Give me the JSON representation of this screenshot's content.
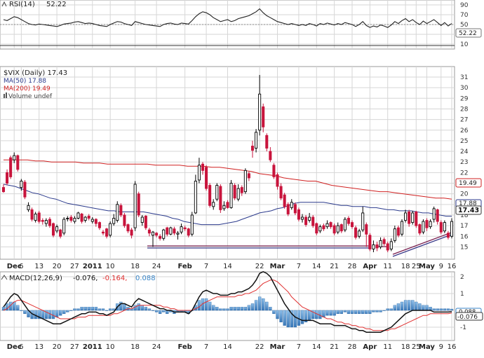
{
  "rsi": {
    "label": "RSI(14)",
    "value_label": "52.22",
    "icon": "rsi-indicator-icon",
    "ticks": [
      "90",
      "70",
      "50",
      "30",
      "10"
    ],
    "ylim": [
      0,
      100
    ],
    "levels": [
      70,
      30
    ],
    "current": 52.22
  },
  "price": {
    "label": "$VIX (Daily) 17.43",
    "ma50_label": "MA(50) 17.88",
    "ma200_label": "MA(200) 19.49",
    "volume_label": "Volume undef",
    "ticks": [
      "31",
      "30",
      "29",
      "28",
      "27",
      "26",
      "25",
      "24",
      "23",
      "22",
      "21",
      "20",
      "19",
      "18",
      "17",
      "16",
      "15"
    ],
    "tag_ma200": "19.49",
    "tag_ma50": "17.88",
    "tag_last": "17.43"
  },
  "macd": {
    "label": "MACD(12,26,9)",
    "v1": "-0.076,",
    "v2": "-0.164,",
    "v3": "0.088",
    "ticks": [
      "2",
      "1",
      "0",
      "-1"
    ],
    "tag_main": "-0.076",
    "tag_hist": "0.088"
  },
  "x_labels": [
    "Dec",
    "6",
    "13",
    "20",
    "27",
    "2011",
    "10",
    "18",
    "24",
    "Feb",
    "7",
    "14",
    "22",
    "Mar",
    "7",
    "14",
    "21",
    "28",
    "Apr",
    "11",
    "18",
    "25",
    "May",
    "9",
    "16"
  ],
  "colors": {
    "up": "#000000",
    "down": "#c8143c",
    "ma50": "#2b3a8c",
    "ma200": "#d02020",
    "macd_signal": "#e03030",
    "histogram": "#4a8cc8",
    "support_line": "#7a2050",
    "grid": "#d6d6d6"
  },
  "chart_data": {
    "type": "candlestick",
    "title": "$VIX (Daily)",
    "ylim": [
      14,
      32
    ],
    "ma50": [
      20.9,
      20.8,
      20.7,
      20.5,
      20.3,
      20.1,
      20.0,
      19.8,
      19.6,
      19.5,
      19.3,
      19.1,
      19.0,
      18.9,
      18.8,
      18.7,
      18.6,
      18.5,
      18.4,
      18.4,
      18.3,
      18.3,
      18.3,
      18.3,
      18.3,
      18.2,
      18.1,
      18.0,
      17.9,
      17.7,
      17.6,
      17.4,
      17.3,
      17.2,
      17.1,
      17.1,
      17.1,
      17.1,
      17.2,
      17.3,
      17.4,
      17.6,
      17.8,
      18.0,
      18.2,
      18.3,
      18.4,
      18.6,
      18.7,
      18.9,
      19.1,
      19.2,
      19.2,
      19.2,
      19.2,
      19.2,
      19.1,
      19.0,
      18.9,
      18.9,
      18.8,
      18.8,
      18.8,
      18.7,
      18.7,
      18.6,
      18.5,
      18.5,
      18.4,
      18.4,
      18.4,
      18.3,
      18.2,
      18.2,
      18.1,
      18.0,
      17.9,
      17.9
    ],
    "ma200": [
      23.2,
      23.2,
      23.2,
      23.2,
      23.1,
      23.1,
      23.0,
      23.0,
      23.0,
      23.0,
      22.9,
      22.9,
      22.9,
      22.8,
      22.8,
      22.8,
      22.8,
      22.8,
      22.8,
      22.7,
      22.7,
      22.7,
      22.7,
      22.6,
      22.6,
      22.6,
      22.5,
      22.5,
      22.4,
      22.3,
      22.2,
      22.1,
      21.9,
      21.8,
      21.7,
      21.5,
      21.4,
      21.3,
      21.2,
      21.2,
      21.0,
      20.8,
      20.7,
      20.6,
      20.5,
      20.4,
      20.3,
      20.2,
      20.2,
      20.1,
      20.0,
      19.9,
      19.8,
      19.7,
      19.6,
      19.6,
      19.5
    ],
    "candles": [
      [
        20.6,
        20.2,
        20.9,
        20.1
      ],
      [
        22.0,
        21.0,
        22.3,
        20.8
      ],
      [
        23.4,
        21.6,
        23.6,
        21.4
      ],
      [
        23.2,
        23.6,
        23.9,
        22.9
      ],
      [
        23.6,
        22.3,
        23.7,
        22.1
      ],
      [
        20.6,
        21.2,
        21.4,
        20.3
      ],
      [
        21.1,
        19.7,
        21.3,
        19.5
      ],
      [
        18.5,
        18.9,
        19.2,
        18.3
      ],
      [
        18.5,
        17.6,
        18.7,
        17.4
      ],
      [
        17.5,
        18.1,
        18.3,
        17.3
      ],
      [
        18.2,
        17.4,
        18.4,
        17.2
      ],
      [
        17.5,
        17.4,
        17.7,
        17.1
      ],
      [
        17.2,
        17.5,
        17.7,
        16.9
      ],
      [
        17.6,
        17.0,
        17.8,
        16.8
      ],
      [
        17.2,
        16.1,
        17.3,
        15.9
      ],
      [
        16.5,
        16.9,
        17.1,
        16.3
      ],
      [
        16.6,
        16.0,
        16.7,
        15.8
      ],
      [
        16.3,
        17.6,
        17.8,
        16.1
      ],
      [
        17.7,
        17.7,
        17.9,
        17.4
      ],
      [
        17.8,
        17.5,
        18.0,
        17.3
      ],
      [
        17.4,
        17.7,
        17.9,
        17.2
      ],
      [
        17.7,
        18.2,
        18.3,
        17.6
      ],
      [
        18.1,
        17.4,
        18.2,
        17.2
      ],
      [
        17.5,
        17.8,
        17.9,
        17.3
      ],
      [
        17.9,
        17.7,
        18.1,
        17.5
      ],
      [
        17.4,
        17.6,
        17.8,
        17.2
      ],
      [
        17.6,
        17.2,
        17.7,
        16.9
      ],
      [
        17.3,
        16.8,
        17.4,
        16.6
      ],
      [
        16.4,
        16.3,
        16.6,
        16.1
      ],
      [
        16.7,
        16.0,
        16.8,
        15.8
      ],
      [
        16.1,
        17.2,
        17.4,
        15.9
      ],
      [
        17.2,
        17.7,
        18.1,
        17.0
      ],
      [
        17.5,
        19.0,
        19.3,
        17.3
      ],
      [
        18.9,
        18.0,
        19.1,
        17.8
      ],
      [
        18.0,
        17.0,
        18.2,
        16.8
      ],
      [
        17.1,
        16.5,
        17.2,
        16.3
      ],
      [
        16.6,
        16.1,
        16.8,
        15.8
      ],
      [
        16.8,
        20.9,
        21.2,
        16.5
      ],
      [
        20.0,
        18.0,
        20.2,
        17.8
      ],
      [
        17.3,
        17.8,
        18.0,
        17.0
      ],
      [
        17.9,
        16.8,
        18.0,
        16.6
      ],
      [
        16.6,
        16.3,
        16.8,
        16.0
      ],
      [
        16.1,
        16.4,
        16.5,
        15.0
      ],
      [
        16.3,
        16.1,
        16.4,
        15.9
      ],
      [
        16.0,
        15.8,
        16.2,
        15.6
      ],
      [
        15.8,
        16.6,
        16.7,
        15.6
      ],
      [
        16.8,
        16.2,
        16.9,
        16.0
      ],
      [
        16.2,
        16.8,
        16.9,
        16.1
      ],
      [
        16.7,
        16.3,
        16.9,
        16.1
      ],
      [
        16.2,
        16.3,
        16.5,
        15.7
      ],
      [
        16.4,
        16.9,
        17.2,
        16.2
      ],
      [
        16.8,
        16.7,
        17.0,
        16.5
      ],
      [
        16.7,
        16.1,
        16.8,
        15.9
      ],
      [
        16.2,
        18.0,
        18.3,
        16.0
      ],
      [
        18.2,
        21.2,
        21.8,
        18.1
      ],
      [
        21.3,
        22.7,
        23.4,
        21.0
      ],
      [
        22.8,
        22.2,
        23.0,
        21.8
      ],
      [
        22.5,
        20.5,
        22.7,
        20.3
      ],
      [
        20.8,
        18.9,
        21.0,
        18.7
      ],
      [
        18.8,
        19.2,
        19.5,
        18.5
      ],
      [
        19.5,
        20.8,
        21.0,
        19.3
      ],
      [
        20.7,
        18.5,
        20.9,
        18.2
      ],
      [
        18.6,
        18.9,
        19.3,
        18.4
      ],
      [
        19.2,
        18.7,
        19.4,
        18.6
      ],
      [
        18.7,
        21.0,
        21.3,
        18.6
      ],
      [
        20.8,
        19.6,
        21.0,
        19.4
      ],
      [
        19.5,
        20.5,
        20.9,
        19.3
      ],
      [
        20.6,
        20.1,
        20.8,
        19.8
      ],
      [
        20.2,
        22.2,
        22.4,
        20.0
      ],
      [
        21.9,
        21.5,
        22.1,
        21.2
      ],
      [
        24.5,
        24.1,
        25.0,
        23.4
      ],
      [
        24.3,
        25.8,
        26.1,
        23.9
      ],
      [
        26.0,
        29.4,
        31.2,
        25.5
      ],
      [
        28.2,
        26.3,
        28.5,
        25.8
      ],
      [
        25.5,
        24.3,
        25.7,
        24.0
      ],
      [
        24.0,
        23.2,
        24.4,
        23.0
      ],
      [
        22.7,
        21.6,
        22.9,
        21.4
      ],
      [
        21.8,
        20.7,
        22.0,
        20.4
      ],
      [
        20.7,
        19.6,
        21.0,
        19.4
      ],
      [
        19.9,
        18.8,
        20.1,
        18.6
      ],
      [
        19.0,
        18.1,
        19.2,
        17.9
      ],
      [
        18.7,
        19.2,
        19.5,
        18.5
      ],
      [
        19.0,
        18.2,
        19.2,
        18.0
      ],
      [
        18.5,
        17.6,
        18.7,
        17.4
      ],
      [
        17.6,
        17.8,
        18.1,
        17.3
      ],
      [
        17.8,
        17.1,
        18.0,
        16.9
      ],
      [
        17.5,
        17.8,
        18.2,
        17.3
      ],
      [
        17.8,
        17.0,
        18.0,
        16.8
      ],
      [
        17.2,
        16.3,
        17.3,
        16.1
      ],
      [
        16.5,
        16.9,
        17.1,
        16.3
      ],
      [
        17.0,
        16.7,
        17.2,
        16.5
      ],
      [
        16.9,
        17.2,
        17.5,
        16.7
      ],
      [
        17.3,
        16.9,
        17.4,
        16.7
      ],
      [
        17.0,
        16.3,
        17.2,
        16.1
      ],
      [
        16.4,
        17.0,
        17.3,
        16.2
      ],
      [
        17.1,
        16.5,
        17.2,
        16.3
      ],
      [
        16.6,
        17.6,
        17.8,
        16.4
      ],
      [
        17.7,
        17.2,
        17.9,
        17.0
      ],
      [
        17.3,
        16.9,
        17.5,
        16.7
      ],
      [
        16.8,
        15.9,
        17.0,
        15.7
      ],
      [
        16.0,
        16.5,
        16.7,
        15.8
      ],
      [
        16.6,
        18.2,
        18.8,
        16.4
      ],
      [
        17.1,
        16.2,
        17.3,
        15.0
      ],
      [
        16.1,
        14.8,
        16.3,
        14.6
      ],
      [
        14.8,
        15.2,
        15.6,
        14.5
      ],
      [
        15.2,
        14.9,
        15.5,
        14.6
      ],
      [
        15.0,
        15.6,
        15.9,
        14.8
      ],
      [
        15.7,
        15.3,
        15.9,
        15.1
      ],
      [
        15.3,
        14.7,
        15.5,
        14.5
      ],
      [
        14.8,
        15.5,
        15.8,
        14.6
      ],
      [
        15.6,
        16.7,
        17.0,
        15.4
      ],
      [
        16.8,
        16.1,
        17.0,
        15.9
      ],
      [
        16.2,
        17.4,
        17.6,
        16.0
      ],
      [
        17.5,
        18.2,
        18.5,
        17.3
      ],
      [
        18.3,
        17.2,
        18.5,
        16.9
      ],
      [
        17.3,
        18.2,
        18.4,
        17.1
      ],
      [
        18.3,
        17.0,
        18.4,
        16.8
      ],
      [
        17.1,
        16.3,
        17.2,
        16.1
      ],
      [
        16.4,
        17.4,
        17.6,
        16.2
      ],
      [
        17.5,
        16.8,
        17.7,
        16.5
      ],
      [
        16.9,
        17.4,
        17.6,
        16.7
      ],
      [
        17.6,
        18.6,
        18.8,
        17.3
      ],
      [
        18.5,
        17.4,
        18.6,
        17.1
      ],
      [
        17.3,
        16.4,
        17.5,
        16.2
      ],
      [
        16.5,
        17.3,
        17.5,
        16.3
      ],
      [
        16.3,
        15.9,
        16.5,
        15.7
      ],
      [
        16.0,
        17.4,
        17.7,
        15.8
      ]
    ],
    "rsi": [
      60,
      58,
      62,
      66,
      64,
      60,
      56,
      52,
      50,
      49,
      51,
      50,
      49,
      48,
      47,
      46,
      48,
      51,
      52,
      53,
      55,
      56,
      54,
      52,
      53,
      52,
      50,
      48,
      47,
      46,
      50,
      53,
      56,
      55,
      52,
      50,
      48,
      56,
      54,
      52,
      50,
      49,
      48,
      47,
      46,
      50,
      52,
      53,
      51,
      50,
      53,
      52,
      51,
      58,
      66,
      72,
      76,
      74,
      70,
      64,
      60,
      56,
      58,
      60,
      56,
      58,
      62,
      64,
      66,
      68,
      72,
      76,
      82,
      74,
      68,
      64,
      60,
      56,
      54,
      52,
      50,
      52,
      50,
      48,
      50,
      48,
      52,
      50,
      47,
      52,
      50,
      53,
      51,
      49,
      52,
      50,
      54,
      52,
      50,
      46,
      50,
      56,
      48,
      44,
      47,
      45,
      49,
      47,
      44,
      49,
      56,
      52,
      58,
      62,
      56,
      60,
      54,
      50,
      57,
      52,
      56,
      60,
      54,
      48,
      54,
      47,
      52
    ],
    "macd": {
      "main": [
        0.2,
        0.5,
        0.8,
        1.0,
        0.9,
        0.6,
        0.3,
        0.0,
        -0.2,
        -0.3,
        -0.4,
        -0.5,
        -0.6,
        -0.7,
        -0.8,
        -0.8,
        -0.8,
        -0.7,
        -0.6,
        -0.5,
        -0.4,
        -0.3,
        -0.2,
        -0.2,
        -0.1,
        -0.1,
        -0.1,
        -0.2,
        -0.2,
        -0.3,
        -0.2,
        -0.1,
        0.2,
        0.4,
        0.4,
        0.3,
        0.2,
        0.5,
        0.7,
        0.6,
        0.5,
        0.4,
        0.3,
        0.2,
        0.1,
        0.1,
        0.0,
        0.0,
        -0.1,
        -0.1,
        -0.1,
        -0.1,
        -0.2,
        0.0,
        0.4,
        0.8,
        1.1,
        1.2,
        1.1,
        1.0,
        1.0,
        0.9,
        0.9,
        0.9,
        1.0,
        1.0,
        1.1,
        1.1,
        1.2,
        1.3,
        1.5,
        1.8,
        2.2,
        2.3,
        2.2,
        2.0,
        1.6,
        1.2,
        0.8,
        0.4,
        0.1,
        -0.2,
        -0.4,
        -0.5,
        -0.6,
        -0.6,
        -0.6,
        -0.6,
        -0.7,
        -0.8,
        -0.8,
        -0.8,
        -0.8,
        -0.9,
        -0.9,
        -0.9,
        -0.9,
        -1.0,
        -1.1,
        -1.1,
        -1.2,
        -1.2,
        -1.3,
        -1.3,
        -1.3,
        -1.3,
        -1.3,
        -1.2,
        -1.1,
        -1.0,
        -0.8,
        -0.6,
        -0.4,
        -0.2,
        -0.1,
        0.0,
        0.0,
        0.0,
        0.0,
        0.0,
        0.0,
        -0.1,
        -0.1,
        -0.1,
        -0.1,
        -0.1,
        -0.08
      ],
      "signal": [
        0.0,
        0.1,
        0.3,
        0.5,
        0.6,
        0.6,
        0.5,
        0.4,
        0.3,
        0.2,
        0.1,
        0.0,
        -0.1,
        -0.2,
        -0.3,
        -0.4,
        -0.5,
        -0.5,
        -0.5,
        -0.5,
        -0.5,
        -0.4,
        -0.4,
        -0.4,
        -0.3,
        -0.3,
        -0.3,
        -0.3,
        -0.3,
        -0.3,
        -0.3,
        -0.2,
        -0.2,
        -0.1,
        0.0,
        0.1,
        0.1,
        0.2,
        0.3,
        0.3,
        0.3,
        0.3,
        0.3,
        0.3,
        0.3,
        0.2,
        0.2,
        0.1,
        0.1,
        0.0,
        0.0,
        0.0,
        0.0,
        0.0,
        0.1,
        0.2,
        0.4,
        0.5,
        0.6,
        0.7,
        0.8,
        0.8,
        0.8,
        0.8,
        0.8,
        0.8,
        0.9,
        0.9,
        1.0,
        1.0,
        1.1,
        1.2,
        1.4,
        1.6,
        1.7,
        1.8,
        1.8,
        1.7,
        1.5,
        1.3,
        1.1,
        0.8,
        0.6,
        0.4,
        0.2,
        0.1,
        0.0,
        -0.1,
        -0.2,
        -0.3,
        -0.4,
        -0.5,
        -0.5,
        -0.6,
        -0.7,
        -0.7,
        -0.8,
        -0.8,
        -0.9,
        -0.9,
        -1.0,
        -1.0,
        -1.1,
        -1.1,
        -1.2,
        -1.2,
        -1.2,
        -1.2,
        -1.2,
        -1.1,
        -1.1,
        -1.0,
        -0.9,
        -0.8,
        -0.7,
        -0.6,
        -0.5,
        -0.4,
        -0.3,
        -0.3,
        -0.2,
        -0.2,
        -0.2,
        -0.2,
        -0.2,
        -0.2,
        -0.16
      ],
      "ylim": [
        -1.5,
        2.5
      ]
    }
  }
}
